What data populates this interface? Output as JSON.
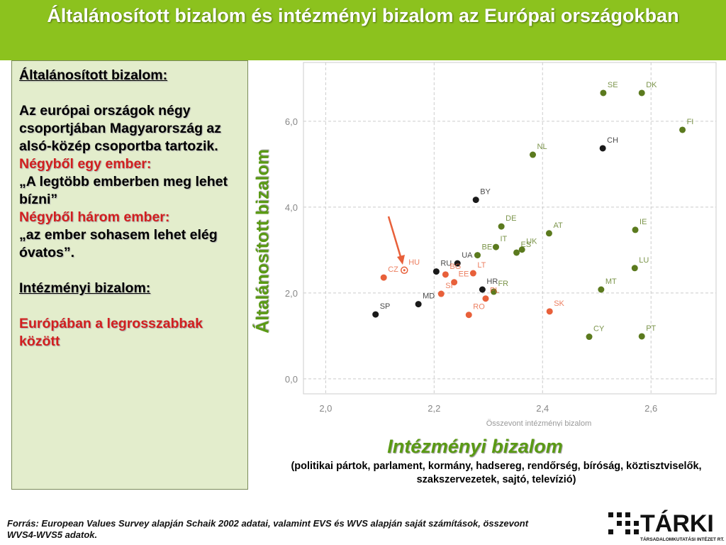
{
  "header": {
    "title": "Általánosított bizalom és intézményi bizalom az Európai országokban"
  },
  "sidebar": {
    "heading1": "Általánosított bizalom:",
    "text1": "Az európai országok négy csoportjában Magyarország az alsó-közép csoportba tartozik.",
    "lead1": "Négyből egy ember:",
    "quote1": "„A legtöbb emberben meg lehet bízni”",
    "lead2": "Négyből három ember:",
    "quote2": "„az ember sohasem lehet elég óvatos”.",
    "heading2": "Intézményi bizalom:",
    "text2": "Európában a legrosszabbak között"
  },
  "chart_data": {
    "type": "scatter",
    "y_label": "Általánosított bizalom",
    "x_label": "Összevont intézményi bizalom",
    "x_title": "Intézményi bizalom",
    "x_subtitle": "(politikai pártok, parlament, kormány, hadsereg, rendőrség, bíróság, köztisztviselők, szakszervezetek, sajtó, televízió)",
    "xlim": [
      1.959,
      2.72
    ],
    "ylim": [
      -0.35,
      7.37
    ],
    "xticks": [
      {
        "value": 2.0,
        "label": "2,0"
      },
      {
        "value": 2.2,
        "label": "2,2"
      },
      {
        "value": 2.4,
        "label": "2,4"
      },
      {
        "value": 2.6,
        "label": "2,6"
      }
    ],
    "yticks": [
      {
        "value": 0,
        "label": "0,0"
      },
      {
        "value": 2,
        "label": "2,0"
      },
      {
        "value": 4,
        "label": "4,0"
      },
      {
        "value": 6,
        "label": "6,0"
      }
    ],
    "grid": true,
    "series": [
      {
        "color": "#5b7a1e",
        "labels": [
          "DK",
          "SE",
          "FI",
          "NL",
          "DE",
          "AT",
          "IE",
          "IT",
          "UK",
          "ES",
          "BE",
          "LU",
          "FR",
          "MT",
          "CY",
          "PT"
        ],
        "x": [
          2.583,
          2.512,
          2.658,
          2.382,
          2.324,
          2.412,
          2.571,
          2.314,
          2.362,
          2.352,
          2.28,
          2.57,
          2.31,
          2.508,
          2.486,
          2.583
        ],
        "values": [
          6.66,
          6.66,
          5.8,
          5.22,
          3.55,
          3.39,
          3.47,
          3.07,
          3.01,
          2.94,
          2.88,
          2.58,
          2.03,
          2.08,
          0.98,
          0.99
        ]
      },
      {
        "color": "#1a1a1a",
        "labels": [
          "CH",
          "BY",
          "UA",
          "RU",
          "HR",
          "MD",
          "SP"
        ],
        "x": [
          2.511,
          2.277,
          2.243,
          2.204,
          2.289,
          2.171,
          2.092
        ],
        "values": [
          5.37,
          4.17,
          2.69,
          2.5,
          2.08,
          1.74,
          1.5
        ]
      },
      {
        "color": "#e8603a",
        "labels": [
          "CZ",
          "BG",
          "EE",
          "LT",
          "SI",
          "PL",
          "SK",
          "RO"
        ],
        "x": [
          2.107,
          2.221,
          2.237,
          2.272,
          2.213,
          2.295,
          2.413,
          2.264
        ],
        "values": [
          2.36,
          2.43,
          2.25,
          2.46,
          1.98,
          1.87,
          1.57,
          1.49
        ]
      },
      {
        "color": "#e8603a",
        "hollow": true,
        "labels": [
          "HU"
        ],
        "x": [
          2.145
        ],
        "values": [
          2.53
        ]
      }
    ]
  },
  "footer": {
    "source": "Forrás: European Values Survey alapján Schaik 2002 adatai,  valamint EVS és WVS alapján saját számítások, összevont WVS4-WVS5 adatok.",
    "logo": "TÁRKI",
    "logo_sub": "TÁRSADALOMKUTATÁSI INTÉZET RT."
  }
}
